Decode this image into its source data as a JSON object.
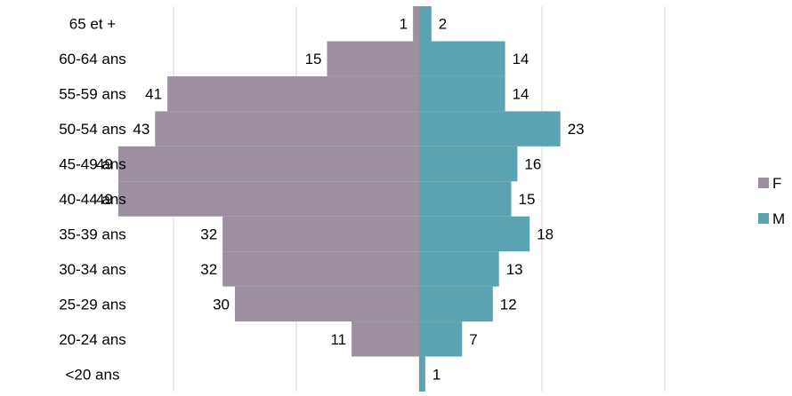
{
  "chart_data": {
    "type": "bar",
    "orientation": "horizontal",
    "layout": "population-pyramid",
    "categories": [
      "65 et +",
      "60-64 ans",
      "55-59 ans",
      "50-54 ans",
      "45-49 ans",
      "40-44 ans",
      "35-39 ans",
      "30-34 ans",
      "25-29 ans",
      "20-24 ans",
      "<20 ans"
    ],
    "series": [
      {
        "name": "F",
        "color": "#9b8fa0",
        "side": "left",
        "values": [
          1,
          15,
          41,
          43,
          49,
          49,
          32,
          32,
          30,
          11,
          0
        ],
        "labels": [
          "1",
          "15",
          "41",
          "43",
          "49",
          "49",
          "32",
          "32",
          "30",
          "11",
          ""
        ]
      },
      {
        "name": "M",
        "color": "#5ba3b0",
        "side": "right",
        "values": [
          2,
          14,
          14,
          23,
          16,
          15,
          18,
          13,
          12,
          7,
          1
        ],
        "labels": [
          "2",
          "14",
          "14",
          "23",
          "16",
          "15",
          "18",
          "13",
          "12",
          "7",
          "1"
        ]
      }
    ],
    "xlim": [
      -50,
      50
    ],
    "grid": true,
    "legend_position": "right",
    "title": "",
    "xlabel": "",
    "ylabel": ""
  }
}
